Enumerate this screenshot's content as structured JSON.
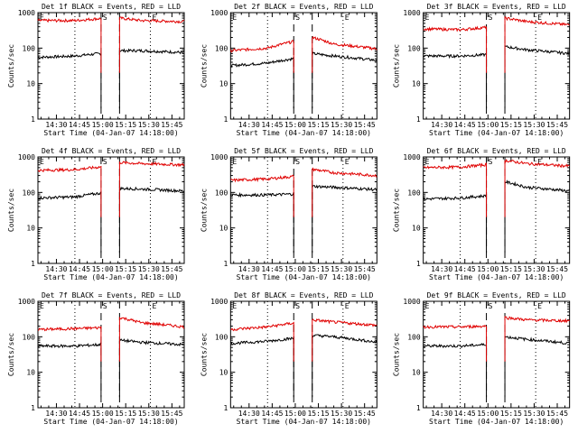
{
  "colors": {
    "events": "#000000",
    "lld": "#e00000",
    "axis": "#000000"
  },
  "shared": {
    "xlabel": "Start Time (04-Jan-07 14:18:00)",
    "ylabel": "Counts/sec",
    "x_ticks": [
      "14:30",
      "14:45",
      "15:00",
      "15:15",
      "15:30",
      "15:45"
    ],
    "y_ticks": [
      "1",
      "10",
      "100",
      "1000"
    ],
    "x_range": [
      "14:18",
      "15:53"
    ],
    "y_range": [
      1,
      1000
    ],
    "y_scale": "log",
    "vertical_lines": [
      {
        "time": "14:42",
        "style": "dotted"
      },
      {
        "time": "14:59",
        "style": "dashed",
        "label": "S"
      },
      {
        "time": "15:11",
        "style": "dashed"
      },
      {
        "time": "15:31",
        "style": "dotted",
        "label": "E"
      }
    ],
    "corner_marker": "E"
  },
  "chart_data": [
    {
      "type": "line",
      "title": "Det 1f BLACK = Events, RED = LLD",
      "x": [
        "14:18",
        "14:42",
        "14:58",
        "15:11",
        "15:25",
        "15:53"
      ],
      "series": [
        {
          "color": "#000000",
          "values": [
            55,
            60,
            70,
            85,
            85,
            75
          ]
        },
        {
          "color": "#e00000",
          "values": [
            600,
            600,
            680,
            700,
            600,
            560
          ]
        }
      ]
    },
    {
      "type": "line",
      "title": "Det 2f BLACK = Events, RED = LLD",
      "x": [
        "14:18",
        "14:42",
        "14:58",
        "15:11",
        "15:25",
        "15:53"
      ],
      "series": [
        {
          "color": "#000000",
          "values": [
            32,
            38,
            50,
            70,
            60,
            45
          ]
        },
        {
          "color": "#e00000",
          "values": [
            85,
            100,
            150,
            200,
            130,
            95
          ]
        }
      ]
    },
    {
      "type": "line",
      "title": "Det 3f BLACK = Events, RED = LLD",
      "x": [
        "14:18",
        "14:42",
        "14:58",
        "15:11",
        "15:25",
        "15:53"
      ],
      "series": [
        {
          "color": "#000000",
          "values": [
            60,
            60,
            65,
            110,
            90,
            70
          ]
        },
        {
          "color": "#e00000",
          "values": [
            350,
            330,
            380,
            700,
            560,
            450
          ]
        }
      ]
    },
    {
      "type": "line",
      "title": "Det 4f BLACK = Events, RED = LLD",
      "x": [
        "14:18",
        "14:42",
        "14:58",
        "15:11",
        "15:25",
        "15:53"
      ],
      "series": [
        {
          "color": "#000000",
          "values": [
            70,
            75,
            95,
            130,
            125,
            110
          ]
        },
        {
          "color": "#e00000",
          "values": [
            420,
            440,
            520,
            700,
            650,
            600
          ]
        }
      ]
    },
    {
      "type": "line",
      "title": "Det 5f BLACK = Events, RED = LLD",
      "x": [
        "14:18",
        "14:42",
        "14:58",
        "15:11",
        "15:25",
        "15:53"
      ],
      "series": [
        {
          "color": "#000000",
          "values": [
            85,
            85,
            90,
            150,
            140,
            120
          ]
        },
        {
          "color": "#e00000",
          "values": [
            220,
            240,
            280,
            450,
            360,
            300
          ]
        }
      ]
    },
    {
      "type": "line",
      "title": "Det 6f BLACK = Events, RED = LLD",
      "x": [
        "14:18",
        "14:42",
        "14:58",
        "15:11",
        "15:25",
        "15:53"
      ],
      "series": [
        {
          "color": "#000000",
          "values": [
            65,
            70,
            80,
            200,
            140,
            110
          ]
        },
        {
          "color": "#e00000",
          "values": [
            500,
            520,
            600,
            800,
            650,
            550
          ]
        }
      ]
    },
    {
      "type": "line",
      "title": "Det 7f BLACK = Events, RED = LLD",
      "x": [
        "14:18",
        "14:42",
        "14:58",
        "15:11",
        "15:25",
        "15:53"
      ],
      "series": [
        {
          "color": "#000000",
          "values": [
            55,
            55,
            60,
            80,
            70,
            60
          ]
        },
        {
          "color": "#e00000",
          "values": [
            160,
            170,
            180,
            350,
            250,
            190
          ]
        }
      ]
    },
    {
      "type": "line",
      "title": "Det 8f BLACK = Events, RED = LLD",
      "x": [
        "14:18",
        "14:42",
        "14:58",
        "15:11",
        "15:25",
        "15:53"
      ],
      "series": [
        {
          "color": "#000000",
          "values": [
            65,
            75,
            90,
            110,
            100,
            70
          ]
        },
        {
          "color": "#e00000",
          "values": [
            160,
            190,
            240,
            300,
            260,
            210
          ]
        }
      ]
    },
    {
      "type": "line",
      "title": "Det 9f BLACK = Events, RED = LLD",
      "x": [
        "14:18",
        "14:42",
        "14:58",
        "15:11",
        "15:25",
        "15:53"
      ],
      "series": [
        {
          "color": "#000000",
          "values": [
            55,
            55,
            60,
            100,
            85,
            65
          ]
        },
        {
          "color": "#e00000",
          "values": [
            190,
            190,
            200,
            350,
            300,
            280
          ]
        }
      ]
    }
  ]
}
